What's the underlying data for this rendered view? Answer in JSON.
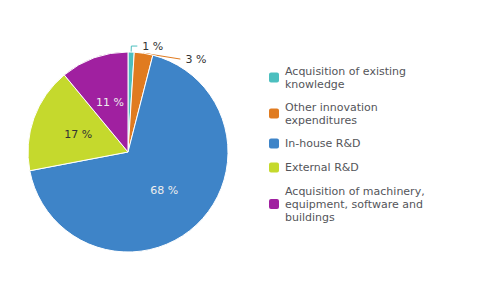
{
  "chart_data": {
    "type": "pie",
    "categories": [
      "Acquisition of existing\nknowledge",
      "Other innovation\nexpenditures",
      "In-house R&D",
      "External R&D",
      "Acquisition of machinery,\nequipment, software and\nbuildings"
    ],
    "values": [
      1,
      3,
      68,
      17,
      11
    ],
    "value_labels": [
      "1 %",
      "3 %",
      "68 %",
      "17 %",
      "11 %"
    ],
    "colors": [
      "#4CBFBF",
      "#E07B20",
      "#3E84C8",
      "#C5D92D",
      "#A020A0"
    ],
    "data_labels": true,
    "legend": "right"
  }
}
